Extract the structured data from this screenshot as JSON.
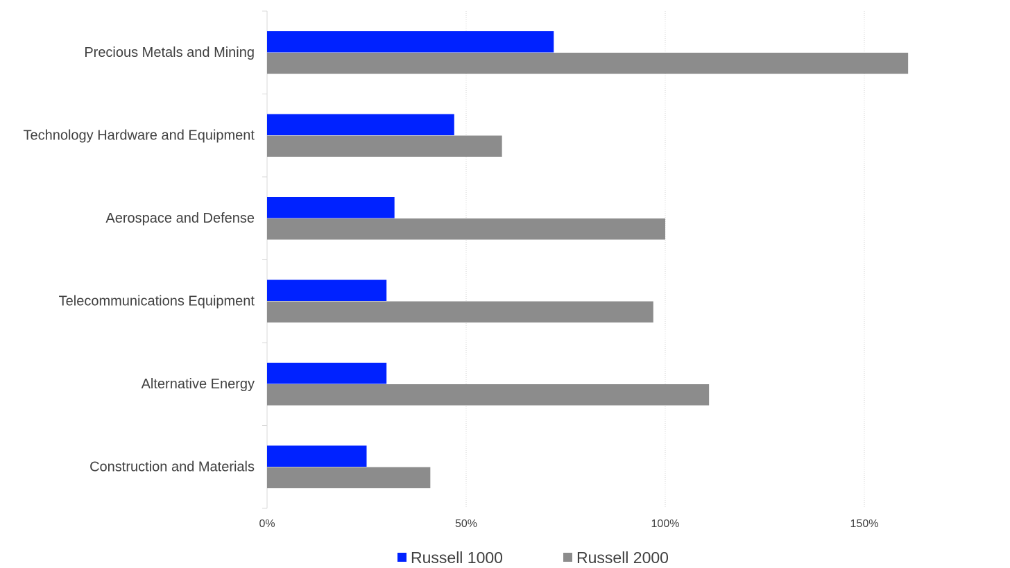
{
  "chart_data": {
    "type": "bar",
    "orientation": "horizontal",
    "categories": [
      "Precious Metals and Mining",
      "Technology Hardware and Equipment",
      "Aerospace and Defense",
      "Telecommunications Equipment",
      "Alternative Energy",
      "Construction and Materials"
    ],
    "series": [
      {
        "name": "Russell 1000",
        "color": "#0022ff",
        "values": [
          72,
          47,
          32,
          30,
          30,
          25
        ]
      },
      {
        "name": "Russell 2000",
        "color": "#8c8c8c",
        "values": [
          161,
          59,
          100,
          97,
          111,
          41
        ]
      }
    ],
    "xlim": [
      0,
      175
    ],
    "xticks": [
      0,
      50,
      100,
      150
    ],
    "xtick_labels": [
      "0%",
      "50%",
      "100%",
      "150%"
    ],
    "grid": "vertical dotted",
    "legend_position": "bottom",
    "title": "",
    "xlabel": "",
    "ylabel": ""
  }
}
